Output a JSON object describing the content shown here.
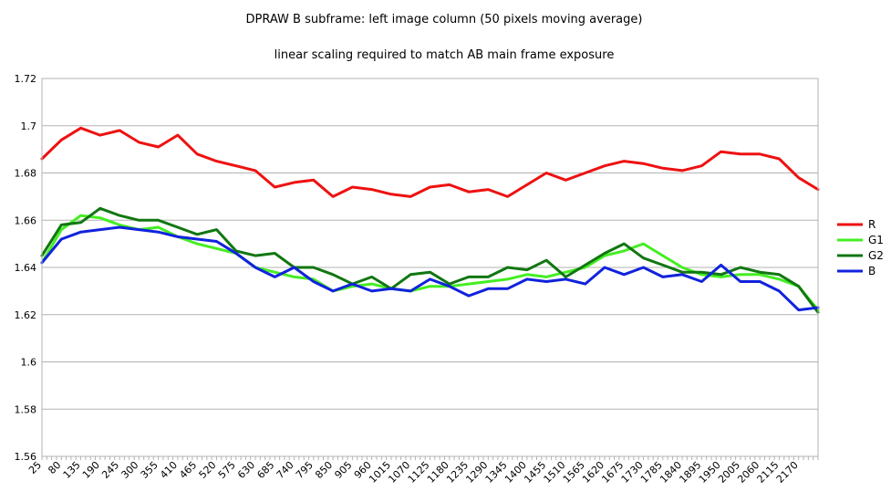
{
  "chart_data": {
    "type": "line",
    "title": "DPRAW B subframe: left image column (50 pixels moving average)",
    "subtitle": "linear scaling required to match AB main frame exposure",
    "xlabel": "",
    "ylabel": "",
    "xlim": [
      25,
      2225
    ],
    "ylim": [
      1.56,
      1.72
    ],
    "y_ticks": [
      "1.56",
      "1.58",
      "1.6",
      "1.62",
      "1.64",
      "1.66",
      "1.68",
      "1.7",
      "1.72"
    ],
    "x_ticks": [
      "25",
      "80",
      "135",
      "190",
      "245",
      "300",
      "355",
      "410",
      "465",
      "520",
      "575",
      "630",
      "685",
      "740",
      "795",
      "850",
      "905",
      "960",
      "1015",
      "1070",
      "1125",
      "1180",
      "1235",
      "1290",
      "1345",
      "1400",
      "1455",
      "1510",
      "1565",
      "1620",
      "1675",
      "1730",
      "1785",
      "1840",
      "1895",
      "1950",
      "2005",
      "2060",
      "2115",
      "2170"
    ],
    "grid": "horizontal",
    "legend": "right",
    "x": [
      25,
      80,
      135,
      190,
      245,
      300,
      355,
      410,
      465,
      520,
      575,
      630,
      685,
      740,
      795,
      850,
      905,
      960,
      1015,
      1070,
      1125,
      1180,
      1235,
      1290,
      1345,
      1400,
      1455,
      1510,
      1565,
      1620,
      1675,
      1730,
      1785,
      1840,
      1895,
      1950,
      2005,
      2060,
      2115,
      2170,
      2225
    ],
    "series": [
      {
        "name": "R",
        "color": "#ee1111",
        "values": [
          1.686,
          1.694,
          1.699,
          1.696,
          1.698,
          1.693,
          1.691,
          1.696,
          1.688,
          1.685,
          1.683,
          1.681,
          1.674,
          1.676,
          1.677,
          1.67,
          1.674,
          1.673,
          1.671,
          1.67,
          1.674,
          1.675,
          1.672,
          1.673,
          1.67,
          1.675,
          1.68,
          1.677,
          1.68,
          1.683,
          1.685,
          1.684,
          1.682,
          1.681,
          1.683,
          1.689,
          1.688,
          1.688,
          1.686,
          1.678,
          1.673
        ]
      },
      {
        "name": "G1",
        "color": "#44ee22",
        "values": [
          1.642,
          1.656,
          1.662,
          1.661,
          1.658,
          1.656,
          1.657,
          1.653,
          1.65,
          1.648,
          1.646,
          1.64,
          1.638,
          1.636,
          1.635,
          1.63,
          1.632,
          1.633,
          1.631,
          1.63,
          1.632,
          1.632,
          1.633,
          1.634,
          1.635,
          1.637,
          1.636,
          1.638,
          1.64,
          1.645,
          1.647,
          1.65,
          1.645,
          1.64,
          1.637,
          1.636,
          1.637,
          1.637,
          1.635,
          1.632,
          1.622
        ]
      },
      {
        "name": "G2",
        "color": "#117711",
        "values": [
          1.645,
          1.658,
          1.659,
          1.665,
          1.662,
          1.66,
          1.66,
          1.657,
          1.654,
          1.656,
          1.647,
          1.645,
          1.646,
          1.64,
          1.64,
          1.637,
          1.633,
          1.636,
          1.631,
          1.637,
          1.638,
          1.633,
          1.636,
          1.636,
          1.64,
          1.639,
          1.643,
          1.636,
          1.641,
          1.646,
          1.65,
          1.644,
          1.641,
          1.638,
          1.638,
          1.637,
          1.64,
          1.638,
          1.637,
          1.632,
          1.621
        ]
      },
      {
        "name": "B",
        "color": "#1122dd",
        "values": [
          1.642,
          1.652,
          1.655,
          1.656,
          1.657,
          1.656,
          1.655,
          1.653,
          1.652,
          1.651,
          1.646,
          1.64,
          1.636,
          1.64,
          1.634,
          1.63,
          1.633,
          1.63,
          1.631,
          1.63,
          1.635,
          1.632,
          1.628,
          1.631,
          1.631,
          1.635,
          1.634,
          1.635,
          1.633,
          1.64,
          1.637,
          1.64,
          1.636,
          1.637,
          1.634,
          1.641,
          1.634,
          1.634,
          1.63,
          1.622,
          1.623
        ]
      }
    ]
  }
}
